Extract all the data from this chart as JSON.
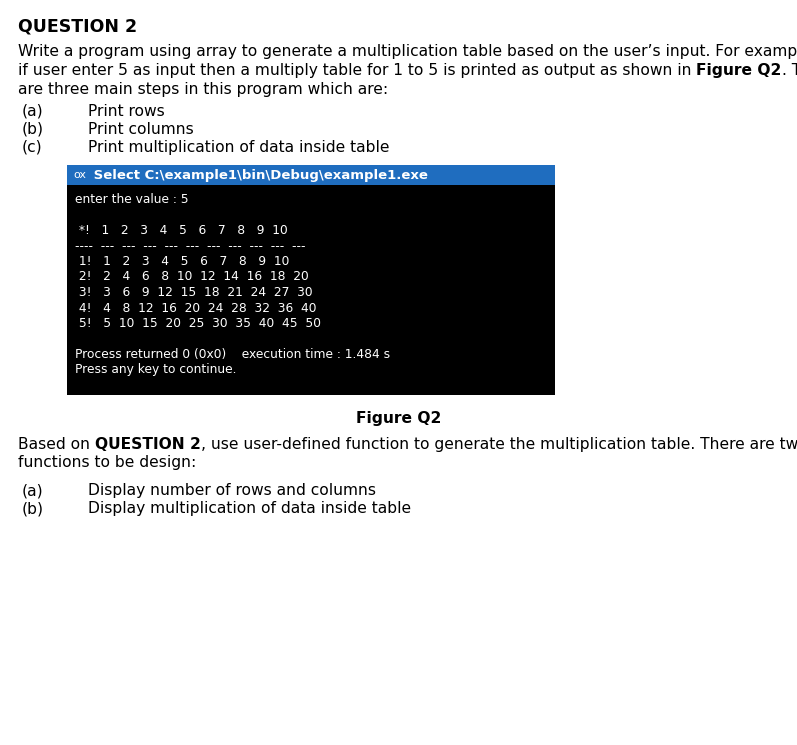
{
  "title": "QUESTION 2",
  "para1": "Write a program using array to generate a multiplication table based on the user’s input. For example",
  "para2a": "if user enter 5 as input then a multiply table for 1 to 5 is printed as output as shown in ",
  "para2b": "Figure Q2",
  "para2c": ". There",
  "para3": "are three main steps in this program which are:",
  "items_q2": [
    [
      "(a)",
      "Print rows"
    ],
    [
      "(b)",
      "Print columns"
    ],
    [
      "(c)",
      "Print multiplication of data inside table"
    ]
  ],
  "console_header": "ox  Select C:\\example1\\bin\\Debug\\example1.exe",
  "console_lines": [
    "enter the value : 5",
    "",
    " *!   1   2   3   4   5   6   7   8   9  10",
    "----  ---  ---  ---  ---  ---  ---  ---  ---  ---  ---",
    " 1!   1   2   3   4   5   6   7   8   9  10",
    " 2!   2   4   6   8  10  12  14  16  18  20",
    " 3!   3   6   9  12  15  18  21  24  27  30",
    " 4!   4   8  12  16  20  24  28  32  36  40",
    " 5!   5  10  15  20  25  30  35  40  45  50",
    "",
    "Process returned 0 (0x0)    execution time : 1.484 s",
    "Press any key to continue."
  ],
  "figure_caption": "Figure Q2",
  "para4a": "Based on ",
  "para4b": "QUESTION 2",
  "para4c": ", use user-defined function to generate the multiplication table. There are two",
  "para5": "functions to be design:",
  "items_q3": [
    [
      "(a)",
      "Display number of rows and columns"
    ],
    [
      "(b)",
      "Display multiplication of data inside table"
    ]
  ],
  "bg_color": "#ffffff",
  "console_bg": "#000000",
  "console_header_bg": "#1f6dbf",
  "console_text_color": "#ffffff",
  "text_color": "#000000",
  "body_fs": 11.2,
  "title_fs": 12.5,
  "console_fs": 8.8,
  "console_header_fs": 9.5
}
